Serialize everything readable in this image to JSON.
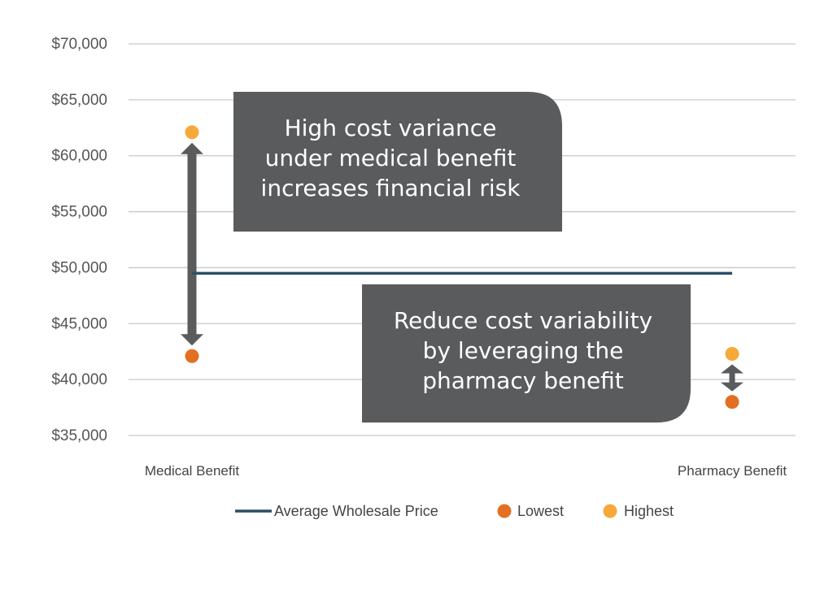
{
  "chart_data": {
    "type": "scatter",
    "categories": [
      "Medical Benefit",
      "Pharmacy Benefit"
    ],
    "y_ticks": [
      "$70,000",
      "$65,000",
      "$60,000",
      "$55,000",
      "$50,000",
      "$45,000",
      "$40,000",
      "$35,000"
    ],
    "y_tick_values": [
      70000,
      65000,
      60000,
      55000,
      50000,
      45000,
      40000,
      35000
    ],
    "ylim": [
      35000,
      70000
    ],
    "grid": true,
    "series": [
      {
        "name": "Average Wholesale Price",
        "kind": "line",
        "color": "#2d4e66",
        "values": [
          49500,
          49500
        ]
      },
      {
        "name": "Lowest",
        "kind": "point",
        "color": "#e36f22",
        "values": [
          42100,
          38000
        ]
      },
      {
        "name": "Highest",
        "kind": "point",
        "color": "#f6a93a",
        "values": [
          62100,
          42300
        ]
      }
    ],
    "annotations": [
      {
        "lines": [
          "High cost variance",
          "under medical benefit",
          "increases financial risk"
        ]
      },
      {
        "lines": [
          "Reduce cost variability",
          "by leveraging the",
          "pharmacy benefit"
        ]
      }
    ],
    "legend": {
      "placement": "bottom"
    },
    "colors": {
      "arrow": "#5a5b5d",
      "callout": "#5a5b5d",
      "grid": "#c8c8c8"
    }
  }
}
